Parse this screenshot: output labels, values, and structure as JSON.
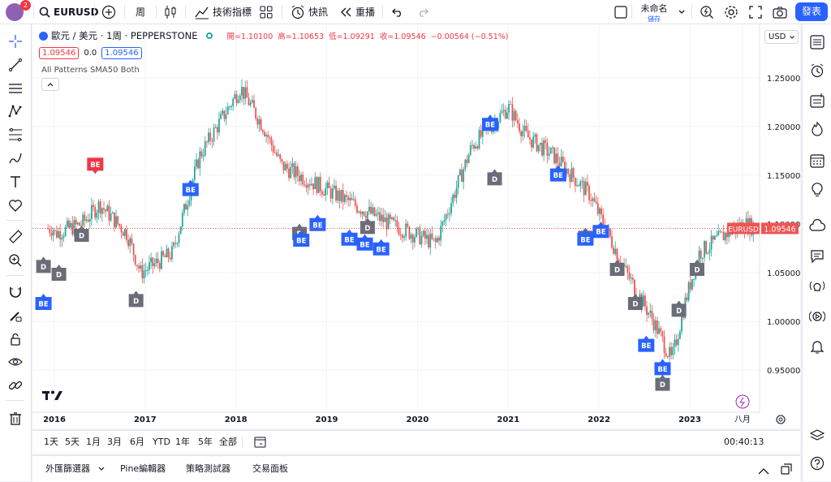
{
  "header": {
    "notification_count": "2",
    "symbol": "EURUSD",
    "interval": "周",
    "indicators_label": "技術指標",
    "alerts_label": "快訊",
    "replay_label": "重播",
    "layout_name": "未命名",
    "save_label": "儲存",
    "publish_label": "發表"
  },
  "legend": {
    "pair_title": "歐元 / 美元 · 1周 · PEPPERSTONE",
    "ohlc": "開=1.10100  高=1.10653  低=1.09291  收=1.09546  −0.00564 (−0.51%)",
    "bid": "1.09546",
    "spread": "0.0",
    "ask": "1.09546",
    "indicator": "All Patterns SMA50 Both"
  },
  "chart": {
    "currency": "USD",
    "price_labels": [
      "1.25000",
      "1.20000",
      "1.15000",
      "1.10000",
      "1.05000",
      "1.00000",
      "0.95000"
    ],
    "year_labels": [
      "2016",
      "2017",
      "2018",
      "2019",
      "2020",
      "2021",
      "2022",
      "2023",
      "八月"
    ],
    "symbol_tag": "EURUSD",
    "last_price": "1.09546",
    "colors": {
      "up": "#26a69a",
      "down": "#ef5350",
      "be": "#2962ff",
      "bear": "#f23645",
      "d": "#6a6d78"
    }
  },
  "chart_data": {
    "type": "candlestick",
    "title": "歐元 / 美元 · 1周 · PEPPERSTONE",
    "ylim": [
      0.92,
      1.27
    ],
    "x": [
      "2016",
      "2017",
      "2018",
      "2019",
      "2020",
      "2021",
      "2022",
      "2023",
      "八月"
    ],
    "path": [
      [
        2016.0,
        1.09
      ],
      [
        2016.3,
        1.1
      ],
      [
        2016.5,
        1.12
      ],
      [
        2016.8,
        1.09
      ],
      [
        2016.95,
        1.05
      ],
      [
        2017.3,
        1.07
      ],
      [
        2017.6,
        1.17
      ],
      [
        2018.05,
        1.24
      ],
      [
        2018.3,
        1.2
      ],
      [
        2018.5,
        1.16
      ],
      [
        2018.9,
        1.14
      ],
      [
        2019.3,
        1.12
      ],
      [
        2019.7,
        1.1
      ],
      [
        2020.2,
        1.08
      ],
      [
        2020.6,
        1.18
      ],
      [
        2021.0,
        1.22
      ],
      [
        2021.2,
        1.19
      ],
      [
        2021.5,
        1.17
      ],
      [
        2021.9,
        1.13
      ],
      [
        2022.3,
        1.05
      ],
      [
        2022.6,
        1.0
      ],
      [
        2022.8,
        0.96
      ],
      [
        2022.95,
        1.02
      ],
      [
        2023.1,
        1.07
      ],
      [
        2023.4,
        1.09
      ],
      [
        2023.6,
        1.1
      ],
      [
        2023.75,
        1.09546
      ]
    ],
    "markers": [
      {
        "label": "BE",
        "kind": "bull",
        "x": 2015.88,
        "y": 1.025
      },
      {
        "label": "D",
        "kind": "d",
        "x": 2015.88,
        "y": 1.063
      },
      {
        "label": "D",
        "kind": "d",
        "x": 2016.05,
        "y": 1.055
      },
      {
        "label": "D",
        "kind": "d",
        "x": 2016.3,
        "y": 1.095
      },
      {
        "label": "BE",
        "kind": "bear",
        "x": 2016.45,
        "y": 1.168
      },
      {
        "label": "D",
        "kind": "d",
        "x": 2016.9,
        "y": 1.028
      },
      {
        "label": "BE",
        "kind": "bull",
        "x": 2017.5,
        "y": 1.142
      },
      {
        "label": "D",
        "kind": "d",
        "x": 2018.7,
        "y": 1.097
      },
      {
        "label": "BE",
        "kind": "bull",
        "x": 2018.72,
        "y": 1.09
      },
      {
        "label": "BE",
        "kind": "bull",
        "x": 2018.9,
        "y": 1.106
      },
      {
        "label": "BE",
        "kind": "bull",
        "x": 2019.25,
        "y": 1.091
      },
      {
        "label": "BE",
        "kind": "bull",
        "x": 2019.42,
        "y": 1.086
      },
      {
        "label": "D",
        "kind": "d",
        "x": 2019.45,
        "y": 1.103
      },
      {
        "label": "BE",
        "kind": "bull",
        "x": 2019.6,
        "y": 1.081
      },
      {
        "label": "BE",
        "kind": "bull",
        "x": 2020.8,
        "y": 1.209
      },
      {
        "label": "D",
        "kind": "d",
        "x": 2020.85,
        "y": 1.153
      },
      {
        "label": "BE",
        "kind": "bull",
        "x": 2021.55,
        "y": 1.157
      },
      {
        "label": "D",
        "kind": "d",
        "x": 2021.85,
        "y": 1.093
      },
      {
        "label": "BE",
        "kind": "bull",
        "x": 2021.85,
        "y": 1.091
      },
      {
        "label": "BE",
        "kind": "bull",
        "x": 2022.02,
        "y": 1.099
      },
      {
        "label": "D",
        "kind": "d",
        "x": 2022.2,
        "y": 1.06
      },
      {
        "label": "D",
        "kind": "d",
        "x": 2022.4,
        "y": 1.025
      },
      {
        "label": "D",
        "kind": "d",
        "x": 2022.7,
        "y": 0.942
      },
      {
        "label": "BE",
        "kind": "bull",
        "x": 2022.52,
        "y": 0.982
      },
      {
        "label": "BE",
        "kind": "bull",
        "x": 2022.7,
        "y": 0.958
      },
      {
        "label": "D",
        "kind": "d",
        "x": 2022.88,
        "y": 1.018
      },
      {
        "label": "D",
        "kind": "d",
        "x": 2023.08,
        "y": 1.06
      }
    ]
  },
  "timeframes": [
    "1天",
    "5天",
    "1月",
    "3月",
    "6月",
    "YTD",
    "1年",
    "5年",
    "全部"
  ],
  "clock": "00:40:13 (UTC+8)",
  "bottom_tabs": [
    "外匯篩選器",
    "Pine編輯器",
    "策略測試器",
    "交易面板"
  ]
}
